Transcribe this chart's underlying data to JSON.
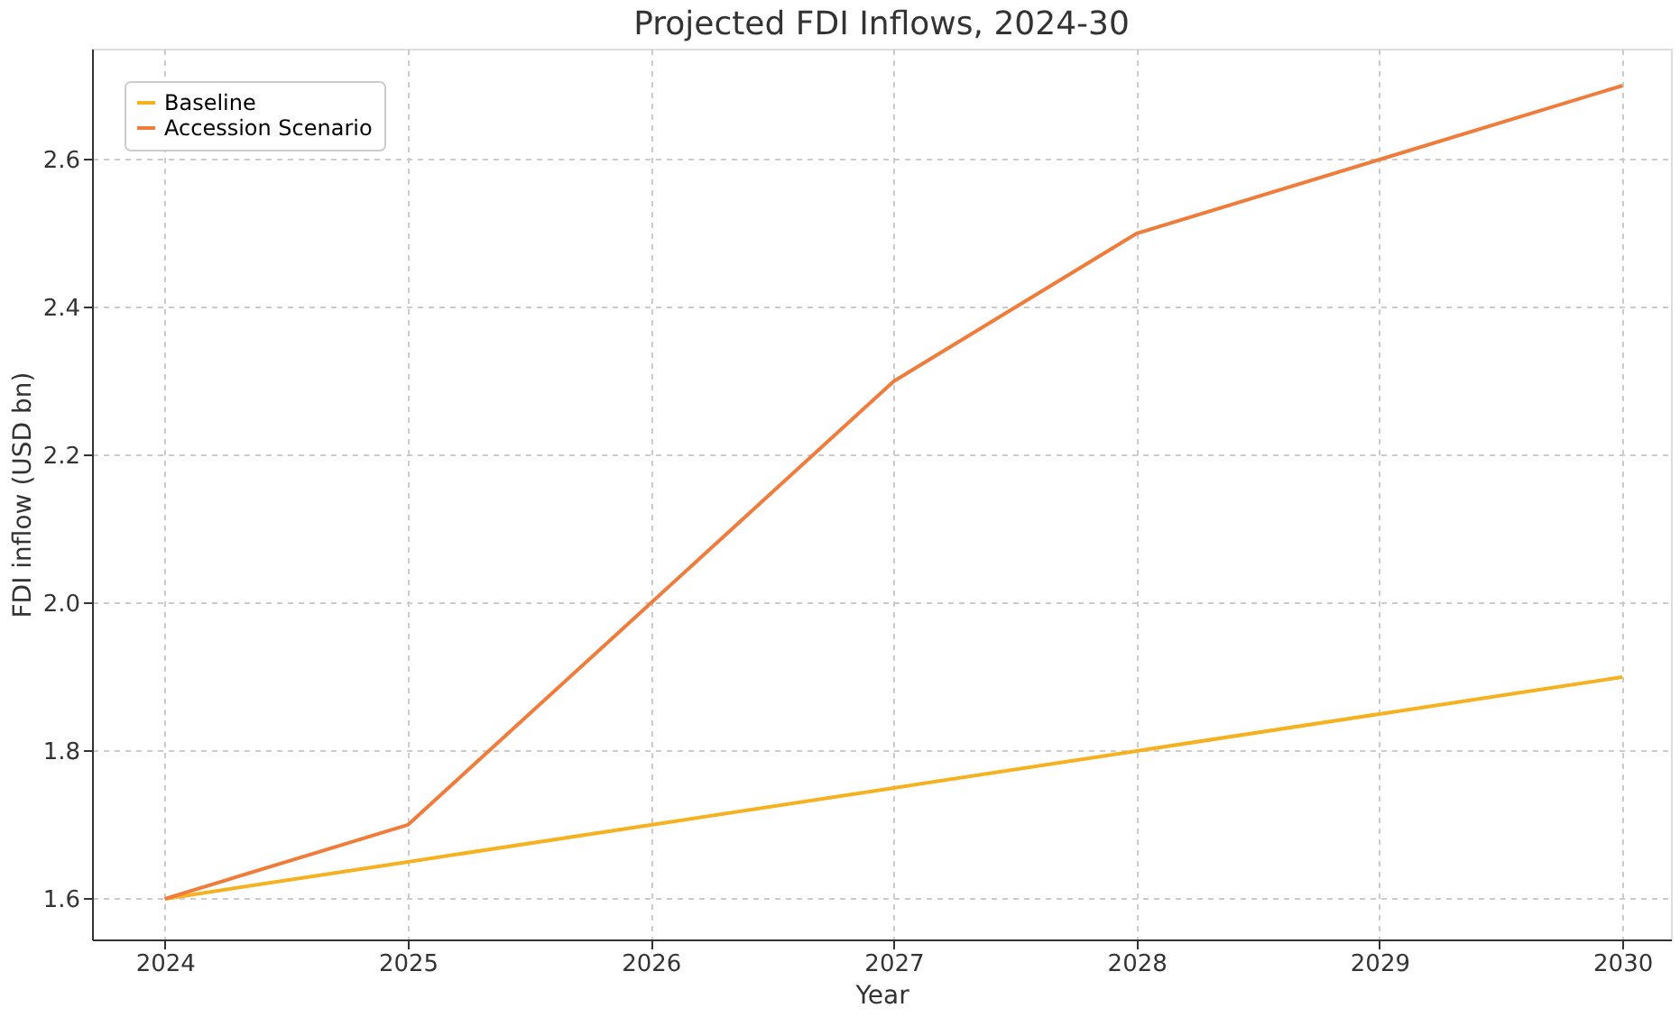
{
  "chart_data": {
    "type": "line",
    "title": "Projected FDI Inflows, 2024-30",
    "xlabel": "Year",
    "ylabel": "FDI inflow (USD bn)",
    "x": [
      2024,
      2025,
      2026,
      2027,
      2028,
      2029,
      2030
    ],
    "series": [
      {
        "name": "Baseline",
        "color": "#f5b120",
        "values": [
          1.6,
          1.65,
          1.7,
          1.75,
          1.8,
          1.85,
          1.9
        ]
      },
      {
        "name": "Accession Scenario",
        "color": "#f07c3c",
        "values": [
          1.6,
          1.7,
          2.0,
          2.3,
          2.5,
          2.6,
          2.7
        ]
      }
    ],
    "xlim": [
      2023.7,
      2030.2
    ],
    "xticks": [
      2024,
      2025,
      2026,
      2027,
      2028,
      2029,
      2030
    ],
    "ylim": [
      1.545,
      2.75
    ],
    "yticks": [
      1.6,
      1.8,
      {
        "value": 2.0,
        "label": "2.0"
      },
      2.2,
      2.4,
      2.6
    ],
    "grid": true,
    "legend": "top left",
    "line_style": "solid",
    "marker": "none"
  }
}
